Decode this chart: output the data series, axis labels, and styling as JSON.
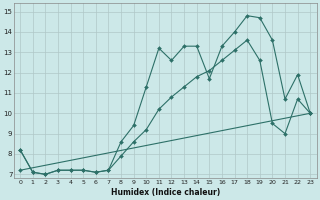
{
  "xlabel": "Humidex (Indice chaleur)",
  "bg_color": "#cce8e8",
  "grid_color": "#b0c8c8",
  "line_color": "#2d7068",
  "xlim": [
    -0.5,
    23.5
  ],
  "ylim": [
    6.8,
    15.4
  ],
  "xticks": [
    0,
    1,
    2,
    3,
    4,
    5,
    6,
    7,
    8,
    9,
    10,
    11,
    12,
    13,
    14,
    15,
    16,
    17,
    18,
    19,
    20,
    21,
    22,
    23
  ],
  "yticks": [
    7,
    8,
    9,
    10,
    11,
    12,
    13,
    14,
    15
  ],
  "series1_x": [
    0,
    1,
    2,
    3,
    4,
    5,
    6,
    7,
    8,
    9,
    10,
    11,
    12,
    13,
    14,
    15,
    16,
    17,
    18,
    19,
    20,
    21,
    22,
    23
  ],
  "series1_y": [
    8.2,
    7.1,
    7.0,
    7.2,
    7.2,
    7.2,
    7.1,
    7.2,
    8.6,
    9.4,
    11.3,
    13.2,
    12.6,
    13.3,
    13.3,
    11.7,
    13.3,
    14.0,
    14.8,
    14.7,
    13.6,
    10.7,
    11.9,
    10.0
  ],
  "series2_x": [
    0,
    1,
    2,
    3,
    4,
    5,
    6,
    7,
    8,
    9,
    10,
    11,
    12,
    13,
    14,
    15,
    16,
    17,
    18,
    19,
    20,
    21,
    22,
    23
  ],
  "series2_y": [
    8.2,
    7.1,
    7.0,
    7.2,
    7.2,
    7.2,
    7.1,
    7.2,
    7.9,
    8.6,
    9.2,
    10.2,
    10.8,
    11.3,
    11.8,
    12.1,
    12.6,
    13.1,
    13.6,
    12.6,
    9.5,
    9.0,
    10.7,
    10.0
  ],
  "series3_x": [
    0,
    23
  ],
  "series3_y": [
    7.2,
    10.0
  ]
}
